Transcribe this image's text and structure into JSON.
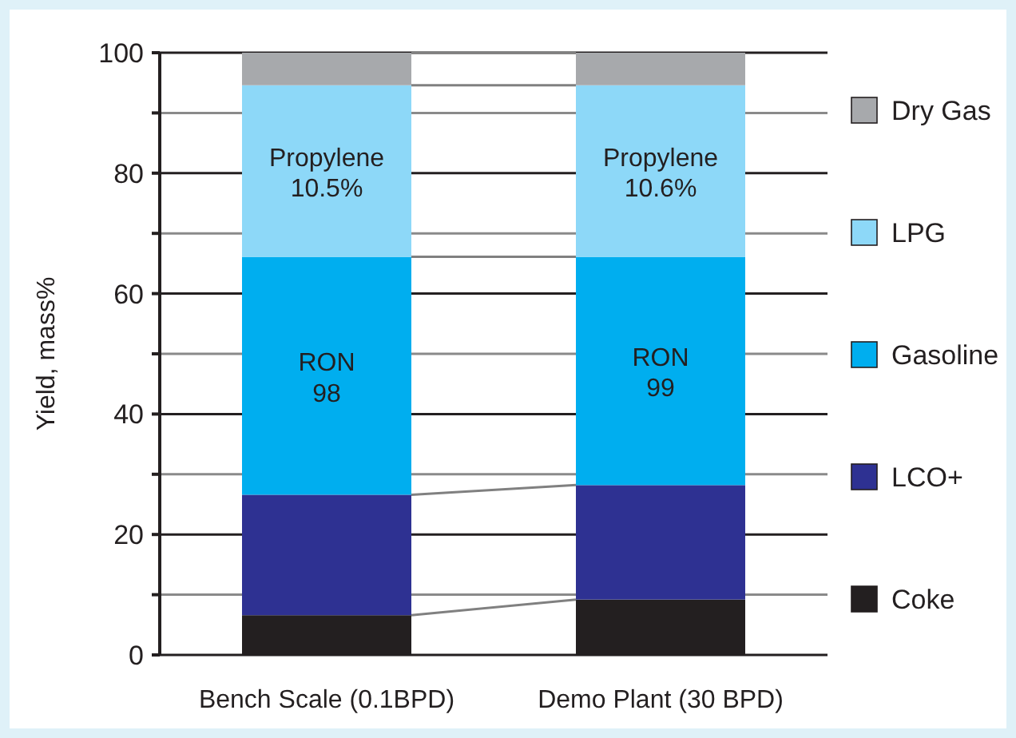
{
  "chart_data": {
    "type": "bar",
    "stacked": true,
    "ylabel": "Yield, mass%",
    "categories": [
      "Bench Scale (0.1BPD)",
      "Demo Plant (30 BPD)"
    ],
    "series": [
      {
        "name": "Coke",
        "color": "#231f20",
        "values": [
          6.6,
          9.2
        ]
      },
      {
        "name": "LCO+",
        "color": "#2e3192",
        "values": [
          20.0,
          19.0
        ]
      },
      {
        "name": "Gasoline",
        "color": "#00aeef",
        "values": [
          39.5,
          37.9
        ]
      },
      {
        "name": "LPG",
        "color": "#8dd8f8",
        "values": [
          28.5,
          28.5
        ]
      },
      {
        "name": "Dry Gas",
        "color": "#a7a9ac",
        "values": [
          5.4,
          5.4
        ]
      }
    ],
    "ylim": [
      0,
      100
    ],
    "yticks": [
      0,
      {
        "value": 10,
        "label": null
      },
      20,
      {
        "value": 30,
        "label": null
      },
      40,
      {
        "value": 50,
        "label": null
      },
      60,
      {
        "value": 70,
        "label": null
      },
      80,
      {
        "value": 90,
        "label": null
      },
      100
    ],
    "grid": "y",
    "legend": "right",
    "annotations": [
      "Propylene\n10.5%",
      "Propylene\n10.6%",
      "RON\n98",
      "RON\n99"
    ]
  }
}
